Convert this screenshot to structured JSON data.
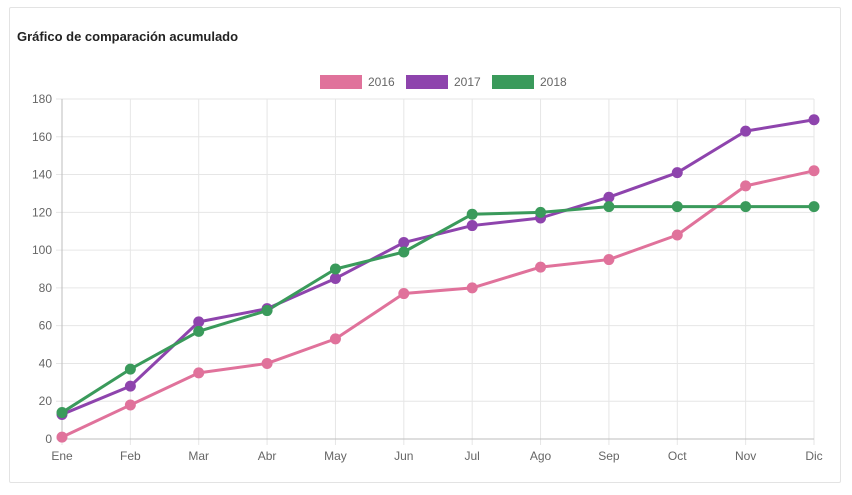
{
  "card": {
    "title": "Gráfico de comparación acumulado"
  },
  "chart_data": {
    "type": "line",
    "title": "Gráfico de comparación acumulado",
    "xlabel": "",
    "ylabel": "",
    "categories": [
      "Ene",
      "Feb",
      "Mar",
      "Abr",
      "May",
      "Jun",
      "Jul",
      "Ago",
      "Sep",
      "Oct",
      "Nov",
      "Dic"
    ],
    "ylim": [
      0,
      180
    ],
    "yticks": [
      0,
      20,
      40,
      60,
      80,
      100,
      120,
      140,
      160,
      180
    ],
    "grid": true,
    "legend_position": "top-center",
    "series": [
      {
        "name": "2016",
        "color": "#e0729b",
        "values": [
          1,
          18,
          35,
          40,
          53,
          77,
          80,
          91,
          95,
          108,
          134,
          142
        ]
      },
      {
        "name": "2017",
        "color": "#8e44ad",
        "values": [
          13,
          28,
          62,
          69,
          85,
          104,
          113,
          117,
          128,
          141,
          163,
          169
        ]
      },
      {
        "name": "2018",
        "color": "#3a9a5b",
        "values": [
          14,
          37,
          57,
          68,
          90,
          99,
          119,
          120,
          123,
          123,
          123,
          123
        ]
      }
    ]
  }
}
